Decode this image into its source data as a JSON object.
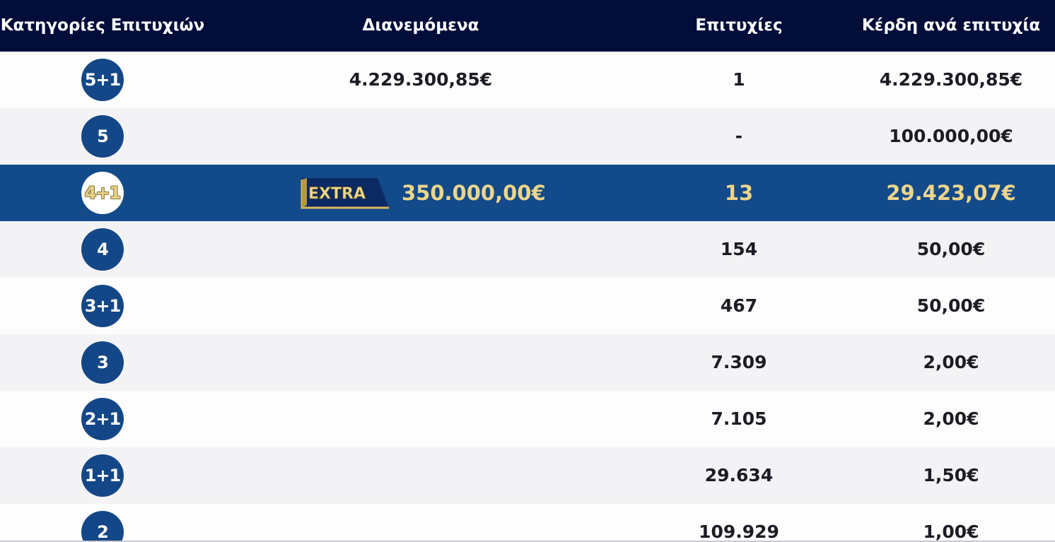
{
  "header": {
    "category": "Κατηγορίες Επιτυχιών",
    "distributed": "Διανεμόμενα",
    "winners": "Επιτυχίες",
    "prize_per_winner": "Κέρδη ανά επιτυχία"
  },
  "rows": [
    {
      "category": "5+1",
      "distributed": "4.229.300,85€",
      "winners": "1",
      "prize": "4.229.300,85€"
    },
    {
      "category": "5",
      "distributed": "",
      "winners": "-",
      "prize": "100.000,00€"
    },
    {
      "category": "4+1",
      "extra_label": "EXTRA",
      "distributed": "350.000,00€",
      "winners": "13",
      "prize": "29.423,07€"
    },
    {
      "category": "4",
      "distributed": "",
      "winners": "154",
      "prize": "50,00€"
    },
    {
      "category": "3+1",
      "distributed": "",
      "winners": "467",
      "prize": "50,00€"
    },
    {
      "category": "3",
      "distributed": "",
      "winners": "7.309",
      "prize": "2,00€"
    },
    {
      "category": "2+1",
      "distributed": "",
      "winners": "7.105",
      "prize": "2,00€"
    },
    {
      "category": "1+1",
      "distributed": "",
      "winners": "29.634",
      "prize": "1,50€"
    },
    {
      "category": "2",
      "distributed": "",
      "winners": "109.929",
      "prize": "1,00€"
    }
  ],
  "colors": {
    "header_bg": "#020d3a",
    "circle_bg": "#144787",
    "highlight_bg": "#124a8a",
    "gold_text": "#ecd58a"
  }
}
